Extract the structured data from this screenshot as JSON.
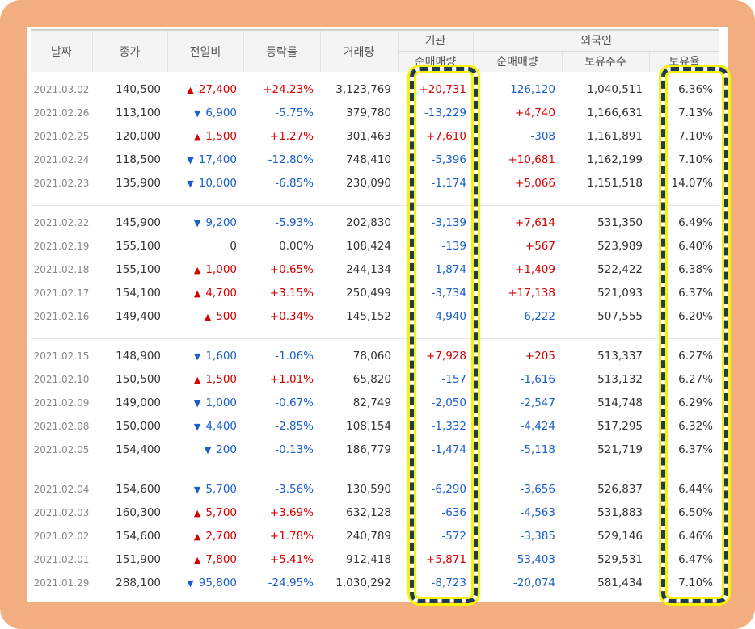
{
  "headers": {
    "date": "날짜",
    "close": "종가",
    "change": "전일비",
    "rate": "등락률",
    "volume": "거래량",
    "institution": "기관",
    "inst_net": "순매매량",
    "foreign": "외국인",
    "foreign_net": "순매매량",
    "foreign_hold": "보유주수",
    "foreign_ratio": "보유율"
  },
  "groups": [
    [
      {
        "date": "2021.03.02",
        "close": "140,500",
        "dir": "up",
        "change": "27,400",
        "rate": "+24.23%",
        "volume": "3,123,769",
        "inst": "+20,731",
        "inst_dir": "up",
        "fnet": "-126,120",
        "fnet_dir": "down",
        "fhold": "1,040,511",
        "fratio": "6.36%"
      },
      {
        "date": "2021.02.26",
        "close": "113,100",
        "dir": "down",
        "change": "6,900",
        "rate": "-5.75%",
        "volume": "379,780",
        "inst": "-13,229",
        "inst_dir": "down",
        "fnet": "+4,740",
        "fnet_dir": "up",
        "fhold": "1,166,631",
        "fratio": "7.13%"
      },
      {
        "date": "2021.02.25",
        "close": "120,000",
        "dir": "up",
        "change": "1,500",
        "rate": "+1.27%",
        "volume": "301,463",
        "inst": "+7,610",
        "inst_dir": "up",
        "fnet": "-308",
        "fnet_dir": "down",
        "fhold": "1,161,891",
        "fratio": "7.10%"
      },
      {
        "date": "2021.02.24",
        "close": "118,500",
        "dir": "down",
        "change": "17,400",
        "rate": "-12.80%",
        "volume": "748,410",
        "inst": "-5,396",
        "inst_dir": "down",
        "fnet": "+10,681",
        "fnet_dir": "up",
        "fhold": "1,162,199",
        "fratio": "7.10%"
      },
      {
        "date": "2021.02.23",
        "close": "135,900",
        "dir": "down",
        "change": "10,000",
        "rate": "-6.85%",
        "volume": "230,090",
        "inst": "-1,174",
        "inst_dir": "down",
        "fnet": "+5,066",
        "fnet_dir": "up",
        "fhold": "1,151,518",
        "fratio": "14.07%"
      }
    ],
    [
      {
        "date": "2021.02.22",
        "close": "145,900",
        "dir": "down",
        "change": "9,200",
        "rate": "-5.93%",
        "volume": "202,830",
        "inst": "-3,139",
        "inst_dir": "down",
        "fnet": "+7,614",
        "fnet_dir": "up",
        "fhold": "531,350",
        "fratio": "6.49%"
      },
      {
        "date": "2021.02.19",
        "close": "155,100",
        "dir": "zero",
        "change": "0",
        "rate": "0.00%",
        "volume": "108,424",
        "inst": "-139",
        "inst_dir": "down",
        "fnet": "+567",
        "fnet_dir": "up",
        "fhold": "523,989",
        "fratio": "6.40%"
      },
      {
        "date": "2021.02.18",
        "close": "155,100",
        "dir": "up",
        "change": "1,000",
        "rate": "+0.65%",
        "volume": "244,134",
        "inst": "-1,874",
        "inst_dir": "down",
        "fnet": "+1,409",
        "fnet_dir": "up",
        "fhold": "522,422",
        "fratio": "6.38%"
      },
      {
        "date": "2021.02.17",
        "close": "154,100",
        "dir": "up",
        "change": "4,700",
        "rate": "+3.15%",
        "volume": "250,499",
        "inst": "-3,734",
        "inst_dir": "down",
        "fnet": "+17,138",
        "fnet_dir": "up",
        "fhold": "521,093",
        "fratio": "6.37%"
      },
      {
        "date": "2021.02.16",
        "close": "149,400",
        "dir": "up",
        "change": "500",
        "rate": "+0.34%",
        "volume": "145,152",
        "inst": "-4,940",
        "inst_dir": "down",
        "fnet": "-6,222",
        "fnet_dir": "down",
        "fhold": "507,555",
        "fratio": "6.20%"
      }
    ],
    [
      {
        "date": "2021.02.15",
        "close": "148,900",
        "dir": "down",
        "change": "1,600",
        "rate": "-1.06%",
        "volume": "78,060",
        "inst": "+7,928",
        "inst_dir": "up",
        "fnet": "+205",
        "fnet_dir": "up",
        "fhold": "513,337",
        "fratio": "6.27%"
      },
      {
        "date": "2021.02.10",
        "close": "150,500",
        "dir": "up",
        "change": "1,500",
        "rate": "+1.01%",
        "volume": "65,820",
        "inst": "-157",
        "inst_dir": "down",
        "fnet": "-1,616",
        "fnet_dir": "down",
        "fhold": "513,132",
        "fratio": "6.27%"
      },
      {
        "date": "2021.02.09",
        "close": "149,000",
        "dir": "down",
        "change": "1,000",
        "rate": "-0.67%",
        "volume": "82,749",
        "inst": "-2,050",
        "inst_dir": "down",
        "fnet": "-2,547",
        "fnet_dir": "down",
        "fhold": "514,748",
        "fratio": "6.29%"
      },
      {
        "date": "2021.02.08",
        "close": "150,000",
        "dir": "down",
        "change": "4,400",
        "rate": "-2.85%",
        "volume": "108,154",
        "inst": "-1,332",
        "inst_dir": "down",
        "fnet": "-4,424",
        "fnet_dir": "down",
        "fhold": "517,295",
        "fratio": "6.32%"
      },
      {
        "date": "2021.02.05",
        "close": "154,400",
        "dir": "down",
        "change": "200",
        "rate": "-0.13%",
        "volume": "186,779",
        "inst": "-1,474",
        "inst_dir": "down",
        "fnet": "-5,118",
        "fnet_dir": "down",
        "fhold": "521,719",
        "fratio": "6.37%"
      }
    ],
    [
      {
        "date": "2021.02.04",
        "close": "154,600",
        "dir": "down",
        "change": "5,700",
        "rate": "-3.56%",
        "volume": "130,590",
        "inst": "-6,290",
        "inst_dir": "down",
        "fnet": "-3,656",
        "fnet_dir": "down",
        "fhold": "526,837",
        "fratio": "6.44%"
      },
      {
        "date": "2021.02.03",
        "close": "160,300",
        "dir": "up",
        "change": "5,700",
        "rate": "+3.69%",
        "volume": "632,128",
        "inst": "-636",
        "inst_dir": "down",
        "fnet": "-4,563",
        "fnet_dir": "down",
        "fhold": "531,883",
        "fratio": "6.50%"
      },
      {
        "date": "2021.02.02",
        "close": "154,600",
        "dir": "up",
        "change": "2,700",
        "rate": "+1.78%",
        "volume": "240,789",
        "inst": "-572",
        "inst_dir": "down",
        "fnet": "-3,385",
        "fnet_dir": "down",
        "fhold": "529,146",
        "fratio": "6.46%"
      },
      {
        "date": "2021.02.01",
        "close": "151,900",
        "dir": "up",
        "change": "7,800",
        "rate": "+5.41%",
        "volume": "912,418",
        "inst": "+5,871",
        "inst_dir": "up",
        "fnet": "-53,403",
        "fnet_dir": "down",
        "fhold": "529,531",
        "fratio": "6.47%"
      },
      {
        "date": "2021.01.29",
        "close": "288,100",
        "dir": "down",
        "change": "95,800",
        "rate": "-24.95%",
        "volume": "1,030,292",
        "inst": "-8,723",
        "inst_dir": "down",
        "fnet": "-20,074",
        "fnet_dir": "down",
        "fhold": "581,434",
        "fratio": "7.10%"
      }
    ]
  ],
  "colors": {
    "up": "#d60000",
    "down": "#1a5fc8",
    "frame": "#f3ae80",
    "highlight_dash": "#1f3a57",
    "highlight_glow": "#f6f200"
  }
}
